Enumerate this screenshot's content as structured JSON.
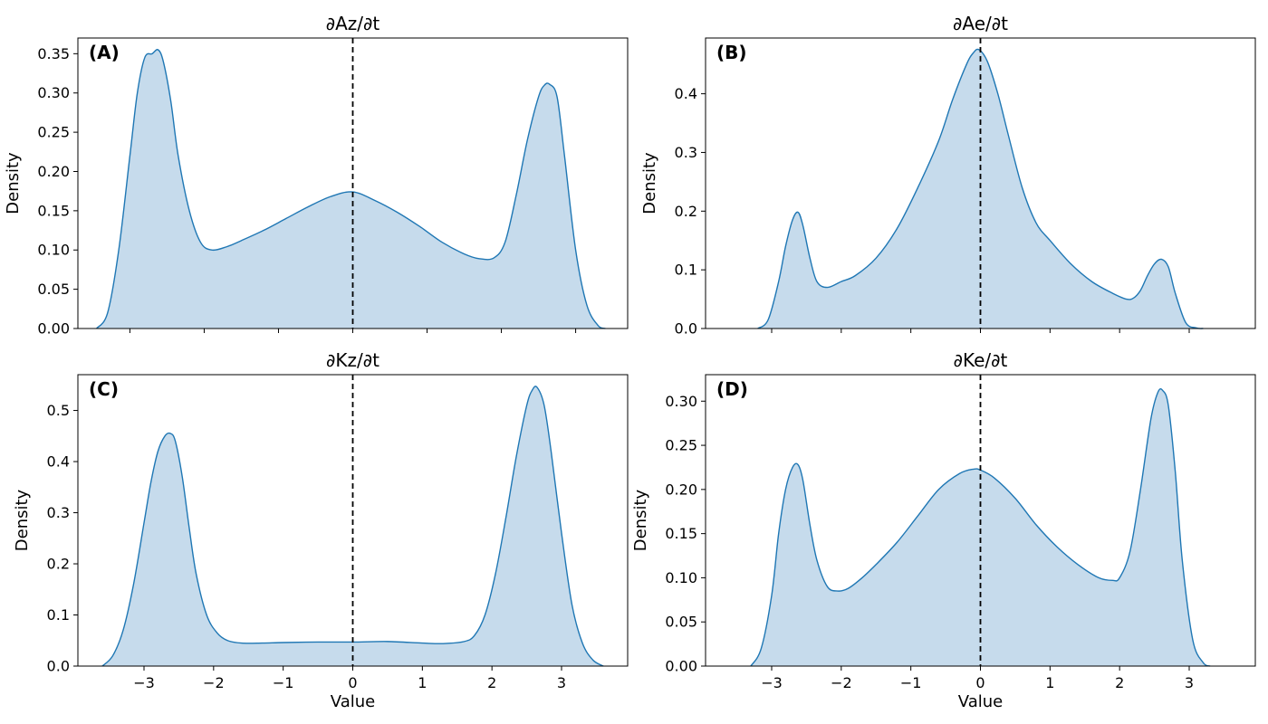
{
  "chart_data": [
    {
      "type": "area",
      "panel_label": "(A)",
      "title": "∂Az/∂t",
      "xlabel": "",
      "ylabel": "Density",
      "xlim": [
        -3.7,
        3.7
      ],
      "ylim": [
        0,
        0.37
      ],
      "xticks": [
        -3,
        -2,
        -1,
        0,
        1,
        2,
        3
      ],
      "xtick_labels_shown": false,
      "yticks": [
        0,
        0.05,
        0.1,
        0.15,
        0.2,
        0.25,
        0.3,
        0.35
      ],
      "ytick_labels": [
        "0.00",
        "0.05",
        "0.10",
        "0.15",
        "0.20",
        "0.25",
        "0.30",
        "0.35"
      ],
      "reference_line_x": 0,
      "x": [
        -3.45,
        -3.3,
        -3.15,
        -3.0,
        -2.9,
        -2.8,
        -2.7,
        -2.62,
        -2.55,
        -2.45,
        -2.35,
        -2.2,
        -2.05,
        -1.9,
        -1.7,
        -1.5,
        -1.2,
        -0.9,
        -0.6,
        -0.3,
        0.0,
        0.3,
        0.6,
        0.9,
        1.2,
        1.5,
        1.7,
        1.9,
        2.05,
        2.2,
        2.35,
        2.5,
        2.58,
        2.65,
        2.75,
        2.85,
        3.0,
        3.15,
        3.3,
        3.4
      ],
      "y": [
        0.0,
        0.02,
        0.1,
        0.22,
        0.3,
        0.345,
        0.35,
        0.355,
        0.34,
        0.29,
        0.22,
        0.15,
        0.11,
        0.1,
        0.104,
        0.112,
        0.125,
        0.14,
        0.155,
        0.168,
        0.174,
        0.163,
        0.148,
        0.13,
        0.11,
        0.095,
        0.089,
        0.09,
        0.11,
        0.17,
        0.24,
        0.295,
        0.31,
        0.311,
        0.295,
        0.22,
        0.1,
        0.03,
        0.004,
        0.0
      ],
      "series_color": "#1f77b4",
      "fill_color": "#c6dbec"
    },
    {
      "type": "area",
      "panel_label": "(B)",
      "title": "∂Ae/∂t",
      "xlabel": "",
      "ylabel": "Density",
      "xlim": [
        -3.95,
        3.95
      ],
      "ylim": [
        0,
        0.495
      ],
      "xticks": [
        -3,
        -2,
        -1,
        0,
        1,
        2,
        3
      ],
      "xtick_labels_shown": false,
      "yticks": [
        0,
        0.1,
        0.2,
        0.3,
        0.4
      ],
      "ytick_labels": [
        "0.0",
        "0.1",
        "0.2",
        "0.3",
        "0.4"
      ],
      "reference_line_x": 0,
      "x": [
        -3.2,
        -3.05,
        -2.9,
        -2.8,
        -2.7,
        -2.62,
        -2.55,
        -2.45,
        -2.35,
        -2.2,
        -2.0,
        -1.8,
        -1.5,
        -1.2,
        -0.9,
        -0.6,
        -0.4,
        -0.2,
        -0.1,
        -0.02,
        0.1,
        0.25,
        0.4,
        0.6,
        0.8,
        1.0,
        1.3,
        1.6,
        1.9,
        2.1,
        2.2,
        2.3,
        2.4,
        2.5,
        2.6,
        2.7,
        2.8,
        2.95,
        3.1,
        3.2
      ],
      "y": [
        0.0,
        0.015,
        0.08,
        0.14,
        0.185,
        0.198,
        0.175,
        0.12,
        0.08,
        0.07,
        0.08,
        0.09,
        0.12,
        0.17,
        0.24,
        0.32,
        0.39,
        0.45,
        0.47,
        0.475,
        0.455,
        0.4,
        0.33,
        0.24,
        0.18,
        0.15,
        0.11,
        0.08,
        0.06,
        0.05,
        0.052,
        0.065,
        0.09,
        0.11,
        0.118,
        0.105,
        0.06,
        0.01,
        0.001,
        0.0
      ],
      "series_color": "#1f77b4",
      "fill_color": "#c6dbec"
    },
    {
      "type": "area",
      "panel_label": "(C)",
      "title": "∂Kz/∂t",
      "xlabel": "Value",
      "ylabel": "Density",
      "xlim": [
        -3.95,
        3.95
      ],
      "ylim": [
        0,
        0.57
      ],
      "xticks": [
        -3,
        -2,
        -1,
        0,
        1,
        2,
        3
      ],
      "xtick_labels": [
        "−3",
        "−2",
        "−1",
        "0",
        "1",
        "2",
        "3"
      ],
      "xtick_labels_shown": true,
      "yticks": [
        0,
        0.1,
        0.2,
        0.3,
        0.4,
        0.5
      ],
      "ytick_labels": [
        "0.0",
        "0.1",
        "0.2",
        "0.3",
        "0.4",
        "0.5"
      ],
      "reference_line_x": 0,
      "x": [
        -3.6,
        -3.45,
        -3.3,
        -3.15,
        -3.0,
        -2.9,
        -2.8,
        -2.7,
        -2.62,
        -2.55,
        -2.45,
        -2.35,
        -2.25,
        -2.1,
        -1.95,
        -1.8,
        -1.6,
        -1.3,
        -1.0,
        -0.5,
        0.0,
        0.5,
        1.0,
        1.3,
        1.6,
        1.75,
        1.9,
        2.05,
        2.2,
        2.35,
        2.5,
        2.58,
        2.65,
        2.75,
        2.85,
        3.0,
        3.15,
        3.3,
        3.45,
        3.6
      ],
      "y": [
        0.0,
        0.02,
        0.07,
        0.16,
        0.28,
        0.36,
        0.42,
        0.45,
        0.455,
        0.44,
        0.37,
        0.27,
        0.18,
        0.1,
        0.065,
        0.05,
        0.045,
        0.045,
        0.046,
        0.047,
        0.047,
        0.048,
        0.045,
        0.044,
        0.048,
        0.06,
        0.1,
        0.18,
        0.29,
        0.41,
        0.51,
        0.54,
        0.545,
        0.51,
        0.42,
        0.26,
        0.12,
        0.045,
        0.012,
        0.0
      ],
      "series_color": "#1f77b4",
      "fill_color": "#c6dbec"
    },
    {
      "type": "area",
      "panel_label": "(D)",
      "title": "∂Ke/∂t",
      "xlabel": "Value",
      "ylabel": "Density",
      "xlim": [
        -3.95,
        3.95
      ],
      "ylim": [
        0,
        0.33
      ],
      "xticks": [
        -3,
        -2,
        -1,
        0,
        1,
        2,
        3
      ],
      "xtick_labels": [
        "−3",
        "−2",
        "−1",
        "0",
        "1",
        "2",
        "3"
      ],
      "xtick_labels_shown": true,
      "yticks": [
        0,
        0.05,
        0.1,
        0.15,
        0.2,
        0.25,
        0.3
      ],
      "ytick_labels": [
        "0.00",
        "0.05",
        "0.10",
        "0.15",
        "0.20",
        "0.25",
        "0.30"
      ],
      "reference_line_x": 0,
      "x": [
        -3.3,
        -3.15,
        -3.0,
        -2.9,
        -2.8,
        -2.7,
        -2.62,
        -2.55,
        -2.45,
        -2.35,
        -2.2,
        -2.05,
        -1.9,
        -1.7,
        -1.5,
        -1.2,
        -0.9,
        -0.6,
        -0.3,
        -0.1,
        0.0,
        0.2,
        0.5,
        0.8,
        1.1,
        1.4,
        1.7,
        1.9,
        2.0,
        2.15,
        2.3,
        2.45,
        2.55,
        2.62,
        2.7,
        2.8,
        2.9,
        3.05,
        3.2,
        3.3
      ],
      "y": [
        0.0,
        0.02,
        0.08,
        0.15,
        0.2,
        0.225,
        0.228,
        0.21,
        0.16,
        0.12,
        0.09,
        0.085,
        0.088,
        0.1,
        0.115,
        0.14,
        0.17,
        0.2,
        0.218,
        0.223,
        0.222,
        0.213,
        0.19,
        0.16,
        0.135,
        0.115,
        0.1,
        0.097,
        0.1,
        0.13,
        0.2,
        0.28,
        0.31,
        0.312,
        0.295,
        0.22,
        0.12,
        0.03,
        0.004,
        0.0
      ],
      "series_color": "#1f77b4",
      "fill_color": "#c6dbec"
    }
  ]
}
